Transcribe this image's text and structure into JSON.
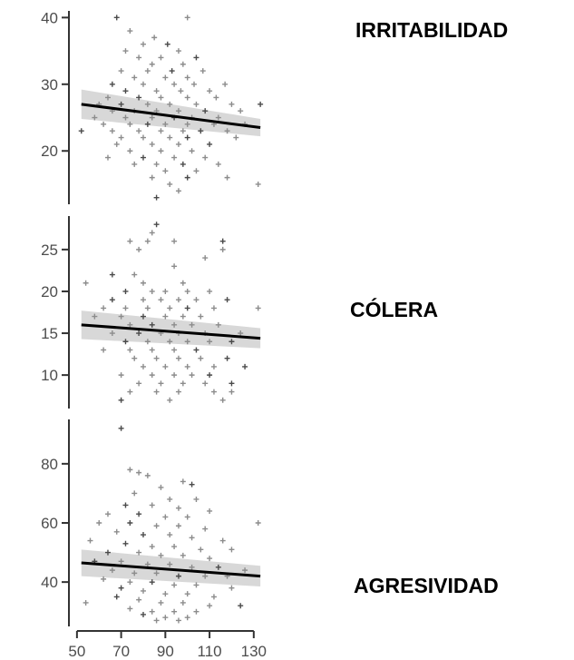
{
  "colors": {
    "points": "#8c8c8c",
    "points_dark": "#4a4a4a",
    "line": "#000000",
    "band": "#c8c8c8",
    "axis": "#333333"
  },
  "chart_data": {
    "type": "scatter",
    "shared_x": {
      "ticks": [
        50,
        70,
        90,
        110,
        130
      ],
      "tick_labels": [
        "50",
        "70",
        "90",
        "110",
        "130"
      ],
      "xlim": [
        48,
        135
      ]
    },
    "panels": [
      {
        "title": "IRRITABILIDAD",
        "ylim": [
          12,
          41
        ],
        "yticks": [
          20,
          30,
          40
        ],
        "ytick_labels": [
          "20",
          "30",
          "40"
        ],
        "trend": {
          "x": [
            52,
            133
          ],
          "y": [
            27.0,
            23.5
          ]
        },
        "band": {
          "lower": [
            24.8,
            22.2
          ],
          "upper": [
            29.2,
            24.8
          ]
        },
        "points": [
          [
            68,
            40
          ],
          [
            100,
            40
          ],
          [
            74,
            38
          ],
          [
            85,
            37
          ],
          [
            80,
            36
          ],
          [
            91,
            36
          ],
          [
            72,
            35
          ],
          [
            96,
            35
          ],
          [
            78,
            34
          ],
          [
            88,
            34
          ],
          [
            104,
            34
          ],
          [
            84,
            33
          ],
          [
            98,
            33
          ],
          [
            70,
            32
          ],
          [
            82,
            32
          ],
          [
            93,
            32
          ],
          [
            107,
            32
          ],
          [
            76,
            31
          ],
          [
            90,
            31
          ],
          [
            100,
            31
          ],
          [
            66,
            30
          ],
          [
            80,
            30
          ],
          [
            94,
            30
          ],
          [
            103,
            30
          ],
          [
            117,
            30
          ],
          [
            72,
            29
          ],
          [
            86,
            29
          ],
          [
            97,
            29
          ],
          [
            110,
            29
          ],
          [
            64,
            28
          ],
          [
            78,
            28
          ],
          [
            88,
            28
          ],
          [
            100,
            28
          ],
          [
            113,
            28
          ],
          [
            60,
            27
          ],
          [
            70,
            27
          ],
          [
            82,
            27
          ],
          [
            92,
            27
          ],
          [
            104,
            27
          ],
          [
            120,
            27
          ],
          [
            133,
            27
          ],
          [
            66,
            26
          ],
          [
            76,
            26
          ],
          [
            86,
            26
          ],
          [
            96,
            26
          ],
          [
            108,
            26
          ],
          [
            124,
            26
          ],
          [
            58,
            25
          ],
          [
            72,
            25
          ],
          [
            84,
            25
          ],
          [
            94,
            25
          ],
          [
            102,
            25
          ],
          [
            114,
            25
          ],
          [
            62,
            24
          ],
          [
            74,
            24
          ],
          [
            82,
            24
          ],
          [
            90,
            24
          ],
          [
            100,
            24
          ],
          [
            112,
            24
          ],
          [
            126,
            24
          ],
          [
            52,
            23
          ],
          [
            66,
            23
          ],
          [
            78,
            23
          ],
          [
            88,
            23
          ],
          [
            98,
            23
          ],
          [
            106,
            23
          ],
          [
            118,
            23
          ],
          [
            70,
            22
          ],
          [
            80,
            22
          ],
          [
            92,
            22
          ],
          [
            100,
            22
          ],
          [
            122,
            22
          ],
          [
            68,
            21
          ],
          [
            84,
            21
          ],
          [
            96,
            21
          ],
          [
            110,
            21
          ],
          [
            74,
            20
          ],
          [
            88,
            20
          ],
          [
            102,
            20
          ],
          [
            64,
            19
          ],
          [
            80,
            19
          ],
          [
            94,
            19
          ],
          [
            108,
            19
          ],
          [
            76,
            18
          ],
          [
            86,
            18
          ],
          [
            98,
            18
          ],
          [
            114,
            18
          ],
          [
            90,
            17
          ],
          [
            104,
            17
          ],
          [
            84,
            16
          ],
          [
            100,
            16
          ],
          [
            118,
            16
          ],
          [
            92,
            15
          ],
          [
            132,
            15
          ],
          [
            96,
            14
          ],
          [
            86,
            13
          ]
        ]
      },
      {
        "title": "CÓLERA",
        "ylim": [
          6,
          29
        ],
        "yticks": [
          10,
          15,
          20,
          25
        ],
        "ytick_labels": [
          "10",
          "15",
          "20",
          "25"
        ],
        "trend": {
          "x": [
            52,
            133
          ],
          "y": [
            16.0,
            14.4
          ]
        },
        "band": {
          "lower": [
            14.3,
            13.2
          ],
          "upper": [
            17.7,
            15.6
          ]
        },
        "points": [
          [
            86,
            28
          ],
          [
            84,
            27
          ],
          [
            74,
            26
          ],
          [
            82,
            26
          ],
          [
            94,
            26
          ],
          [
            116,
            26
          ],
          [
            78,
            25
          ],
          [
            116,
            25
          ],
          [
            94,
            23
          ],
          [
            108,
            24
          ],
          [
            66,
            22
          ],
          [
            76,
            22
          ],
          [
            80,
            21
          ],
          [
            98,
            21
          ],
          [
            54,
            21
          ],
          [
            72,
            20
          ],
          [
            84,
            20
          ],
          [
            90,
            20
          ],
          [
            100,
            20
          ],
          [
            110,
            20
          ],
          [
            66,
            19
          ],
          [
            80,
            19
          ],
          [
            88,
            19
          ],
          [
            96,
            19
          ],
          [
            104,
            19
          ],
          [
            118,
            19
          ],
          [
            62,
            18
          ],
          [
            72,
            18
          ],
          [
            82,
            18
          ],
          [
            92,
            18
          ],
          [
            100,
            18
          ],
          [
            112,
            18
          ],
          [
            132,
            18
          ],
          [
            58,
            17
          ],
          [
            70,
            17
          ],
          [
            80,
            17
          ],
          [
            90,
            17
          ],
          [
            98,
            17
          ],
          [
            106,
            17
          ],
          [
            74,
            16
          ],
          [
            84,
            16
          ],
          [
            94,
            16
          ],
          [
            102,
            16
          ],
          [
            114,
            16
          ],
          [
            66,
            15
          ],
          [
            78,
            15
          ],
          [
            88,
            15
          ],
          [
            96,
            15
          ],
          [
            108,
            15
          ],
          [
            124,
            15
          ],
          [
            72,
            14
          ],
          [
            82,
            14
          ],
          [
            92,
            14
          ],
          [
            100,
            14
          ],
          [
            110,
            14
          ],
          [
            120,
            14
          ],
          [
            62,
            13
          ],
          [
            74,
            13
          ],
          [
            84,
            13
          ],
          [
            94,
            13
          ],
          [
            104,
            13
          ],
          [
            76,
            12
          ],
          [
            86,
            12
          ],
          [
            96,
            12
          ],
          [
            106,
            12
          ],
          [
            118,
            12
          ],
          [
            80,
            11
          ],
          [
            90,
            11
          ],
          [
            100,
            11
          ],
          [
            112,
            11
          ],
          [
            126,
            11
          ],
          [
            70,
            10
          ],
          [
            84,
            10
          ],
          [
            94,
            10
          ],
          [
            102,
            10
          ],
          [
            110,
            10
          ],
          [
            78,
            9
          ],
          [
            88,
            9
          ],
          [
            98,
            9
          ],
          [
            108,
            9
          ],
          [
            120,
            9
          ],
          [
            74,
            8
          ],
          [
            86,
            8
          ],
          [
            96,
            8
          ],
          [
            112,
            8
          ],
          [
            70,
            7
          ],
          [
            92,
            7
          ],
          [
            116,
            7
          ],
          [
            120,
            8
          ]
        ]
      },
      {
        "title": "AGRESIVIDAD",
        "ylim": [
          25,
          95
        ],
        "yticks": [
          40,
          60,
          80
        ],
        "ytick_labels": [
          "40",
          "60",
          "80"
        ],
        "trend": {
          "x": [
            52,
            133
          ],
          "y": [
            46.5,
            42.0
          ]
        },
        "band": {
          "lower": [
            42.0,
            38.5
          ],
          "upper": [
            51.0,
            45.5
          ]
        },
        "points": [
          [
            70,
            92
          ],
          [
            74,
            78
          ],
          [
            78,
            77
          ],
          [
            82,
            76
          ],
          [
            98,
            74
          ],
          [
            102,
            73
          ],
          [
            88,
            72
          ],
          [
            76,
            70
          ],
          [
            92,
            68
          ],
          [
            104,
            68
          ],
          [
            72,
            66
          ],
          [
            84,
            66
          ],
          [
            96,
            65
          ],
          [
            110,
            64
          ],
          [
            64,
            63
          ],
          [
            78,
            63
          ],
          [
            90,
            62
          ],
          [
            100,
            62
          ],
          [
            132,
            60
          ],
          [
            60,
            60
          ],
          [
            74,
            60
          ],
          [
            86,
            59
          ],
          [
            96,
            59
          ],
          [
            108,
            58
          ],
          [
            68,
            57
          ],
          [
            80,
            56
          ],
          [
            92,
            56
          ],
          [
            102,
            55
          ],
          [
            116,
            54
          ],
          [
            56,
            54
          ],
          [
            72,
            53
          ],
          [
            84,
            52
          ],
          [
            94,
            52
          ],
          [
            106,
            51
          ],
          [
            120,
            51
          ],
          [
            64,
            50
          ],
          [
            78,
            50
          ],
          [
            88,
            49
          ],
          [
            98,
            49
          ],
          [
            110,
            48
          ],
          [
            58,
            47
          ],
          [
            70,
            47
          ],
          [
            82,
            46
          ],
          [
            92,
            46
          ],
          [
            102,
            45
          ],
          [
            114,
            45
          ],
          [
            126,
            44
          ],
          [
            66,
            44
          ],
          [
            76,
            43
          ],
          [
            86,
            43
          ],
          [
            96,
            42
          ],
          [
            108,
            42
          ],
          [
            118,
            42
          ],
          [
            62,
            41
          ],
          [
            74,
            40
          ],
          [
            84,
            40
          ],
          [
            94,
            39
          ],
          [
            104,
            39
          ],
          [
            120,
            38
          ],
          [
            54,
            33
          ],
          [
            70,
            38
          ],
          [
            80,
            37
          ],
          [
            90,
            36
          ],
          [
            100,
            36
          ],
          [
            112,
            35
          ],
          [
            68,
            35
          ],
          [
            78,
            34
          ],
          [
            88,
            33
          ],
          [
            98,
            33
          ],
          [
            110,
            32
          ],
          [
            124,
            32
          ],
          [
            74,
            31
          ],
          [
            84,
            30
          ],
          [
            94,
            30
          ],
          [
            104,
            30
          ],
          [
            80,
            29
          ],
          [
            90,
            28
          ],
          [
            100,
            28
          ],
          [
            86,
            27
          ],
          [
            96,
            27
          ]
        ]
      }
    ]
  }
}
